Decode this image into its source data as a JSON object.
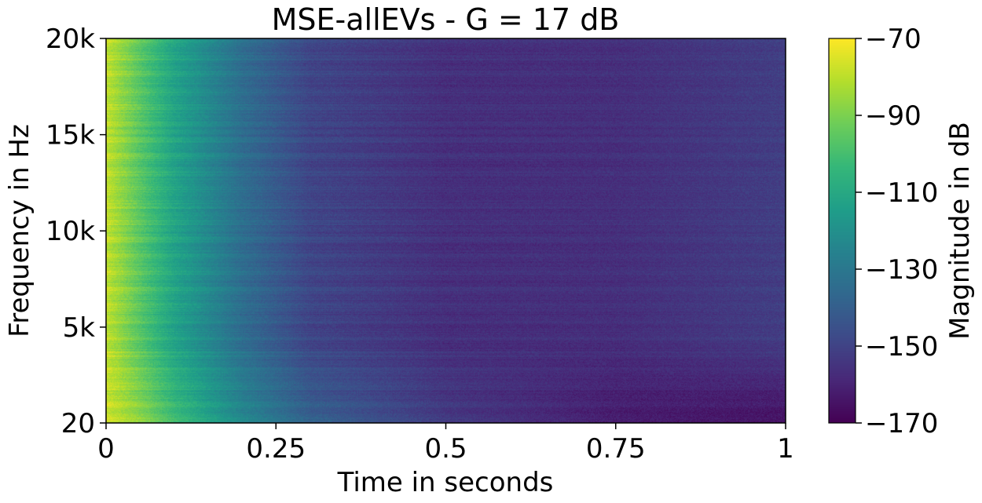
{
  "chart_data": {
    "type": "heatmap",
    "title": "MSE-allEVs - G = 17 dB",
    "xlabel": "Time in seconds",
    "ylabel": "Frequency in Hz",
    "x_ticks": [
      {
        "value": 0,
        "label": "0"
      },
      {
        "value": 0.25,
        "label": "0.25"
      },
      {
        "value": 0.5,
        "label": "0.5"
      },
      {
        "value": 0.75,
        "label": "0.75"
      },
      {
        "value": 1,
        "label": "1"
      }
    ],
    "y_ticks": [
      {
        "value": 20,
        "label": "20"
      },
      {
        "value": 5000,
        "label": "5k"
      },
      {
        "value": 10000,
        "label": "10k"
      },
      {
        "value": 15000,
        "label": "15k"
      },
      {
        "value": 20000,
        "label": "20k"
      }
    ],
    "xlim": [
      0,
      1
    ],
    "ylim": [
      20,
      20000
    ],
    "colormap": "viridis",
    "colorbar": {
      "label": "Magnitude in dB",
      "range": [
        -170,
        -70
      ],
      "ticks": [
        {
          "value": -70,
          "label": "−70"
        },
        {
          "value": -90,
          "label": "−90"
        },
        {
          "value": -110,
          "label": "−110"
        },
        {
          "value": -130,
          "label": "−130"
        },
        {
          "value": -150,
          "label": "−150"
        },
        {
          "value": -170,
          "label": "−170"
        }
      ]
    },
    "magnitude_profile": {
      "time_s": [
        0,
        0.05,
        0.1,
        0.2,
        0.3,
        0.5,
        0.75,
        1
      ],
      "high_freq_dB": [
        -80,
        -97,
        -113,
        -135,
        -150,
        -157,
        -157,
        -152
      ],
      "low_freq_dB": [
        -78,
        -88,
        -102,
        -124,
        -140,
        -154,
        -163,
        -166
      ]
    },
    "grid": false
  },
  "colors": {
    "background": "#ffffff",
    "axis": "#000000"
  }
}
